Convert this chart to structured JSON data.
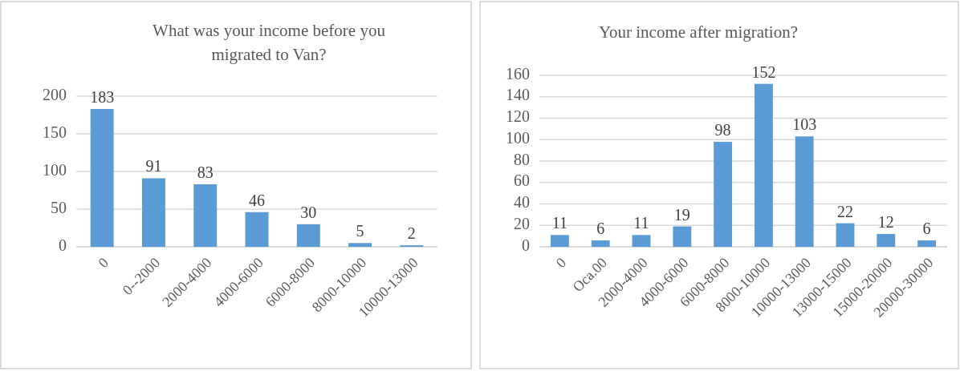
{
  "chart_data": [
    {
      "type": "bar",
      "title": "What was your income before you migrated to Van?",
      "categories": [
        "0",
        "0--2000",
        "2000-4000",
        "4000-6000",
        "6000-8000",
        "8000-10000",
        "10000-13000"
      ],
      "values": [
        183,
        91,
        83,
        46,
        30,
        5,
        2
      ],
      "color": "#5b9bd5",
      "ylim": [
        0,
        200
      ],
      "yticks": [
        0,
        50,
        100,
        150,
        200
      ],
      "grid": "y",
      "data_labels": true
    },
    {
      "type": "bar",
      "title": "Your income after migration?",
      "categories": [
        "0",
        "Oca.00",
        "2000-4000",
        "4000-6000",
        "6000-8000",
        "8000-10000",
        "10000-13000",
        "13000-15000",
        "15000-20000",
        "20000-30000"
      ],
      "values": [
        11,
        6,
        11,
        19,
        98,
        152,
        103,
        22,
        12,
        6
      ],
      "color": "#5b9bd5",
      "ylim": [
        0,
        160
      ],
      "yticks": [
        0,
        20,
        40,
        60,
        80,
        100,
        120,
        140,
        160
      ],
      "grid": "y",
      "data_labels": true
    }
  ]
}
